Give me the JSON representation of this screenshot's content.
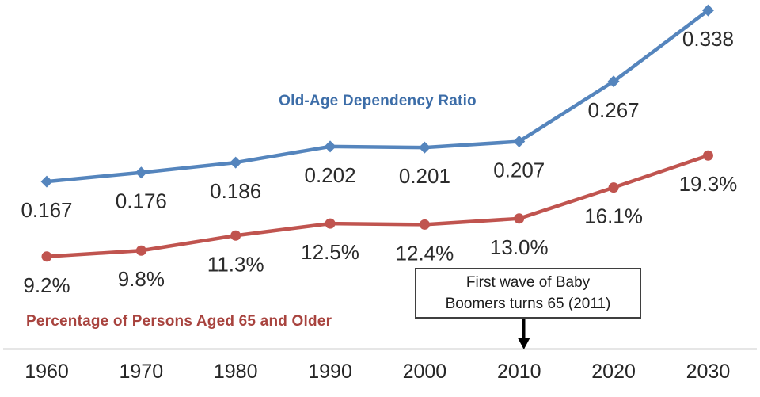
{
  "chart_data": {
    "type": "line",
    "title": "",
    "xlabel": "",
    "ylabel": "",
    "categories": [
      "1960",
      "1970",
      "1980",
      "1990",
      "2000",
      "2010",
      "2020",
      "2030"
    ],
    "series": [
      {
        "name": "Old-Age Dependency Ratio",
        "unit": "ratio",
        "color": "#5585BD",
        "label_color": "#3C6DA8",
        "marker": "diamond",
        "values": [
          0.167,
          0.176,
          0.186,
          0.202,
          0.201,
          0.207,
          0.267,
          0.338
        ],
        "labels": [
          "0.167",
          "0.176",
          "0.186",
          "0.202",
          "0.201",
          "0.207",
          "0.267",
          "0.338"
        ]
      },
      {
        "name": "Percentage of Persons Aged 65 and Older",
        "unit": "percent",
        "color": "#C0544F",
        "label_color": "#A8433E",
        "marker": "circle",
        "values": [
          9.2,
          9.8,
          11.3,
          12.5,
          12.4,
          13.0,
          16.1,
          19.3
        ],
        "labels": [
          "9.2%",
          "9.8%",
          "11.3%",
          "12.5%",
          "12.4%",
          "13.0%",
          "16.1%",
          "19.3%"
        ]
      }
    ],
    "annotation": {
      "lines": [
        "First wave of Baby",
        "Boomers turns 65 (2011)"
      ],
      "arrow_target_category": "2010"
    },
    "ylim_percent": [
      0,
      35
    ],
    "grid": false,
    "legend": "inline-series-labels",
    "data_label_color": "#2b2b2b",
    "tick_label_color": "#262626",
    "axis_line_color": "#9b9b9b",
    "annotation_border_color": "#3f3f3f",
    "arrow_color": "#000000"
  }
}
